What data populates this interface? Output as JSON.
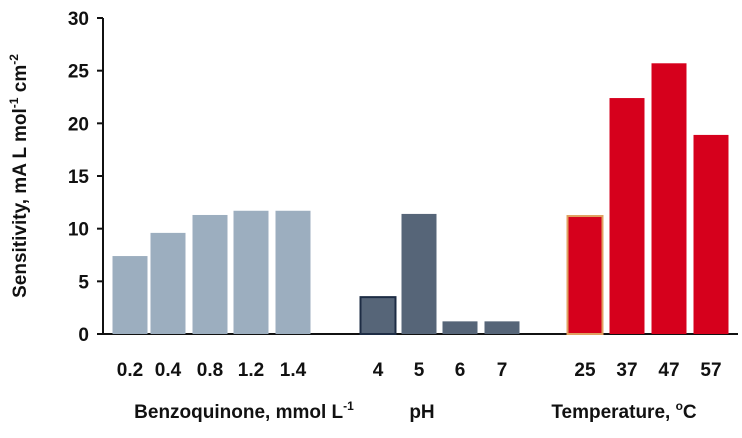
{
  "chart_data": {
    "type": "bar",
    "ylabel": "Sensitivity, mA L mol",
    "ylabel_sup1": "-1",
    "ylabel_mid": " cm",
    "ylabel_sup2": "-2",
    "ylim": [
      0,
      30
    ],
    "yticks": [
      "0",
      "5",
      "10",
      "15",
      "20",
      "25",
      "30"
    ],
    "grid": false,
    "groups": [
      {
        "label": "Benzoquinone, mmol L",
        "label_sup": "-1",
        "categories": [
          "0.2",
          "0.4",
          "0.8",
          "1.2",
          "1.4"
        ],
        "values": [
          7.4,
          9.6,
          11.3,
          11.7,
          11.7
        ],
        "fill": "#9caebf",
        "stroke": "#9caebf"
      },
      {
        "label": "pH",
        "label_sup": "",
        "categories": [
          "4",
          "5",
          "6",
          "7"
        ],
        "values": [
          3.5,
          11.4,
          1.2,
          1.2
        ],
        "fill": "#566578",
        "stroke": "#566578",
        "highlight_index": 0,
        "highlight_stroke": "#1d2c44"
      },
      {
        "label": "Temperature, ",
        "label_sup": "o",
        "label_tail": "C",
        "categories": [
          "25",
          "37",
          "47",
          "57"
        ],
        "values": [
          11.2,
          22.4,
          25.7,
          18.9
        ],
        "fill": "#d6001c",
        "stroke": "#d6001c",
        "highlight_index": 0,
        "highlight_stroke": "#e0a060"
      }
    ]
  }
}
